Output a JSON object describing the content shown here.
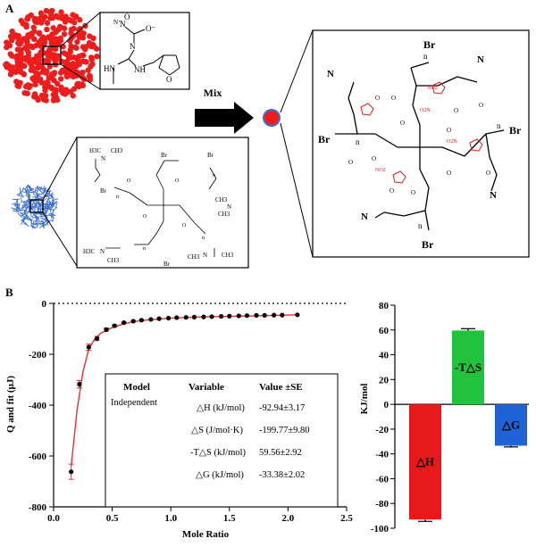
{
  "panels": {
    "a": "A",
    "b": "B"
  },
  "scheme": {
    "mix_label": "Mix",
    "atoms": {
      "N": "N",
      "O": "O",
      "NH": "NH",
      "HN": "HN",
      "Br": "Br",
      "n": "n",
      "O2N": "O2N",
      "NO2": "NO2",
      "H3C": "H3C",
      "CH3": "CH3",
      "o_minus": "O⁻",
      "n_plus": "N⁺"
    }
  },
  "colors": {
    "red_nanoparticle": "#ee1c1c",
    "blue_nanoparticle": "#3b6fd6",
    "fit_line": "#e53030",
    "dh_bar": "#e8191a",
    "tds_bar": "#22c33c",
    "dg_bar": "#1f63d6",
    "drug_atoms": "#e41a1a"
  },
  "chart_data": [
    {
      "type": "scatter",
      "xlabel": "Mole Ratio",
      "ylabel": "Q and fit (μJ)",
      "xlim": [
        0.0,
        2.5
      ],
      "ylim": [
        -800,
        0
      ],
      "xticks": [
        "0.0",
        "0.5",
        "1.0",
        "1.5",
        "2.0",
        "2.5"
      ],
      "yticks": [
        "0",
        "-200",
        "-400",
        "-600",
        "-800"
      ],
      "x": [
        0.15,
        0.22,
        0.3,
        0.37,
        0.45,
        0.52,
        0.6,
        0.68,
        0.75,
        0.83,
        0.9,
        0.98,
        1.05,
        1.13,
        1.2,
        1.28,
        1.35,
        1.43,
        1.5,
        1.58,
        1.65,
        1.73,
        1.8,
        1.88,
        1.95,
        2.08
      ],
      "y": [
        -662,
        -318,
        -172,
        -138,
        -103,
        -88,
        -76,
        -70,
        -66,
        -63,
        -60,
        -58,
        -56,
        -55,
        -54,
        -53,
        -52,
        -51,
        -50,
        -49,
        -48,
        -47,
        -47,
        -46,
        -46,
        -45
      ],
      "errors": [
        30,
        15,
        12,
        8,
        6,
        4,
        3,
        3,
        3,
        2,
        2,
        2,
        2,
        2,
        2,
        2,
        2,
        2,
        2,
        2,
        2,
        2,
        2,
        2,
        2,
        2
      ],
      "fit": {
        "x": [
          0.15,
          0.2,
          0.25,
          0.3,
          0.35,
          0.4,
          0.5,
          0.6,
          0.7,
          0.8,
          1.0,
          1.2,
          1.4,
          1.6,
          1.8,
          2.08
        ],
        "y": [
          -640,
          -420,
          -270,
          -180,
          -140,
          -118,
          -95,
          -80,
          -71,
          -65,
          -58,
          -54,
          -52,
          -50,
          -48,
          -45
        ]
      },
      "table": {
        "headers": [
          "Model",
          "Variable",
          "Value ±SE"
        ],
        "model": "Independent",
        "rows": [
          [
            "△H (kJ/mol)",
            "-92.94±3.17"
          ],
          [
            "△S (J/mol·K)",
            "-199.77±9.80"
          ],
          [
            "-T△S (kJ/mol)",
            "59.56±2.92"
          ],
          [
            "△G (kJ/mol)",
            "-33.38±2.02"
          ]
        ]
      }
    },
    {
      "type": "bar",
      "ylabel": "KJ/mol",
      "ylim": [
        -100,
        80
      ],
      "yticks": [
        "80",
        "60",
        "40",
        "20",
        "0",
        "-20",
        "-40",
        "-60",
        "-80",
        "-100"
      ],
      "categories": [
        "△H",
        "-T△S",
        "△G"
      ],
      "values": [
        -92.94,
        59.56,
        -33.38
      ],
      "errors": [
        1.5,
        1.5,
        1.0
      ]
    }
  ]
}
